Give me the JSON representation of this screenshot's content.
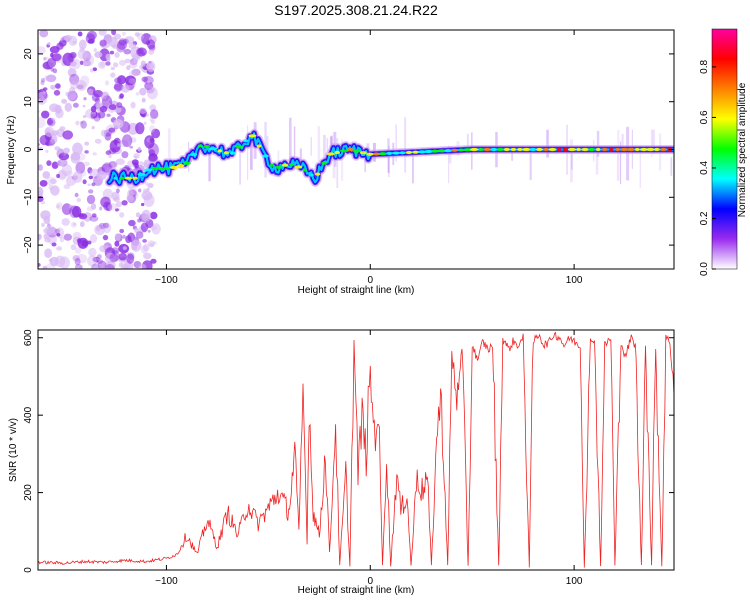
{
  "title": "S197.2025.308.21.24.R22",
  "chart_data": [
    {
      "type": "heatmap",
      "xlabel": "Height of straight line (km)",
      "ylabel": "Frequency (Hz)",
      "xlim": [
        -163,
        149
      ],
      "ylim": [
        -25,
        25
      ],
      "x_ticks": [
        -100,
        0,
        100
      ],
      "y_ticks": [
        -20,
        -10,
        0,
        10,
        20
      ],
      "ridge": [
        {
          "x": -128,
          "y": -6
        },
        {
          "x": -115,
          "y": -6
        },
        {
          "x": -108,
          "y": -4
        },
        {
          "x": -98,
          "y": -4
        },
        {
          "x": -90,
          "y": -3
        },
        {
          "x": -83,
          "y": 1
        },
        {
          "x": -76,
          "y": 0
        },
        {
          "x": -68,
          "y": -1
        },
        {
          "x": -58,
          "y": 3
        },
        {
          "x": -52,
          "y": -1
        },
        {
          "x": -47,
          "y": -4
        },
        {
          "x": -40,
          "y": -3
        },
        {
          "x": -33,
          "y": -4
        },
        {
          "x": -27,
          "y": -6
        },
        {
          "x": -20,
          "y": -1
        },
        {
          "x": -10,
          "y": 0
        },
        {
          "x": 0,
          "y": -1
        },
        {
          "x": 50,
          "y": 0
        },
        {
          "x": 100,
          "y": 0
        },
        {
          "x": 149,
          "y": 0
        }
      ],
      "colorbar": {
        "label": "Normalized spectral amplitude",
        "ticks": [
          0.0,
          0.2,
          0.4,
          0.6,
          0.8
        ],
        "range": [
          0,
          0.95
        ],
        "colors": [
          "#ffffff",
          "#9a2cf0",
          "#0000ff",
          "#00ffff",
          "#00ff00",
          "#ffff00",
          "#ff8000",
          "#ff0000",
          "#ff00a0"
        ]
      }
    },
    {
      "type": "line",
      "xlabel": "Height of straight line (km)",
      "ylabel": "SNR (10 * v/v)",
      "xlim": [
        -163,
        149
      ],
      "ylim": [
        0,
        620
      ],
      "x_ticks": [
        -100,
        0,
        100
      ],
      "y_ticks": [
        0,
        200,
        400,
        600
      ],
      "color": "#ee2222",
      "series": [
        {
          "name": "SNR",
          "x": [
            -163,
            -150,
            -140,
            -130,
            -120,
            -110,
            -100,
            -95,
            -90,
            -85,
            -80,
            -75,
            -70,
            -65,
            -60,
            -55,
            -50,
            -45,
            -40,
            -37,
            -35,
            -33,
            -31,
            -30,
            -28,
            -25,
            -22,
            -20,
            -17,
            -15,
            -12,
            -10,
            -8,
            -6,
            -4,
            -2,
            0,
            2,
            4,
            6,
            8,
            10,
            13,
            15,
            18,
            20,
            23,
            25,
            28,
            30,
            33,
            35,
            38,
            40,
            42,
            45,
            48,
            50,
            53,
            55,
            58,
            60,
            63,
            65,
            68,
            70,
            73,
            75,
            78,
            80,
            83,
            85,
            88,
            90,
            93,
            95,
            98,
            100,
            103,
            105,
            108,
            110,
            113,
            115,
            118,
            120,
            123,
            125,
            128,
            130,
            133,
            135,
            138,
            140,
            143,
            145,
            147,
            149
          ],
          "values": [
            20,
            18,
            22,
            20,
            25,
            22,
            30,
            40,
            90,
            40,
            130,
            60,
            150,
            90,
            170,
            120,
            160,
            200,
            150,
            300,
            90,
            470,
            80,
            420,
            150,
            90,
            300,
            40,
            380,
            10,
            250,
            10,
            590,
            250,
            400,
            290,
            520,
            350,
            420,
            10,
            300,
            10,
            250,
            150,
            200,
            10,
            260,
            200,
            240,
            10,
            390,
            420,
            10,
            560,
            430,
            570,
            10,
            580,
            540,
            590,
            570,
            580,
            10,
            600,
            570,
            590,
            580,
            600,
            10,
            590,
            610,
            580,
            590,
            610,
            600,
            580,
            600,
            590,
            580,
            10,
            590,
            600,
            10,
            580,
            600,
            10,
            590,
            550,
            600,
            580,
            10,
            590,
            10,
            580,
            10,
            600,
            590,
            450
          ]
        }
      ]
    }
  ]
}
